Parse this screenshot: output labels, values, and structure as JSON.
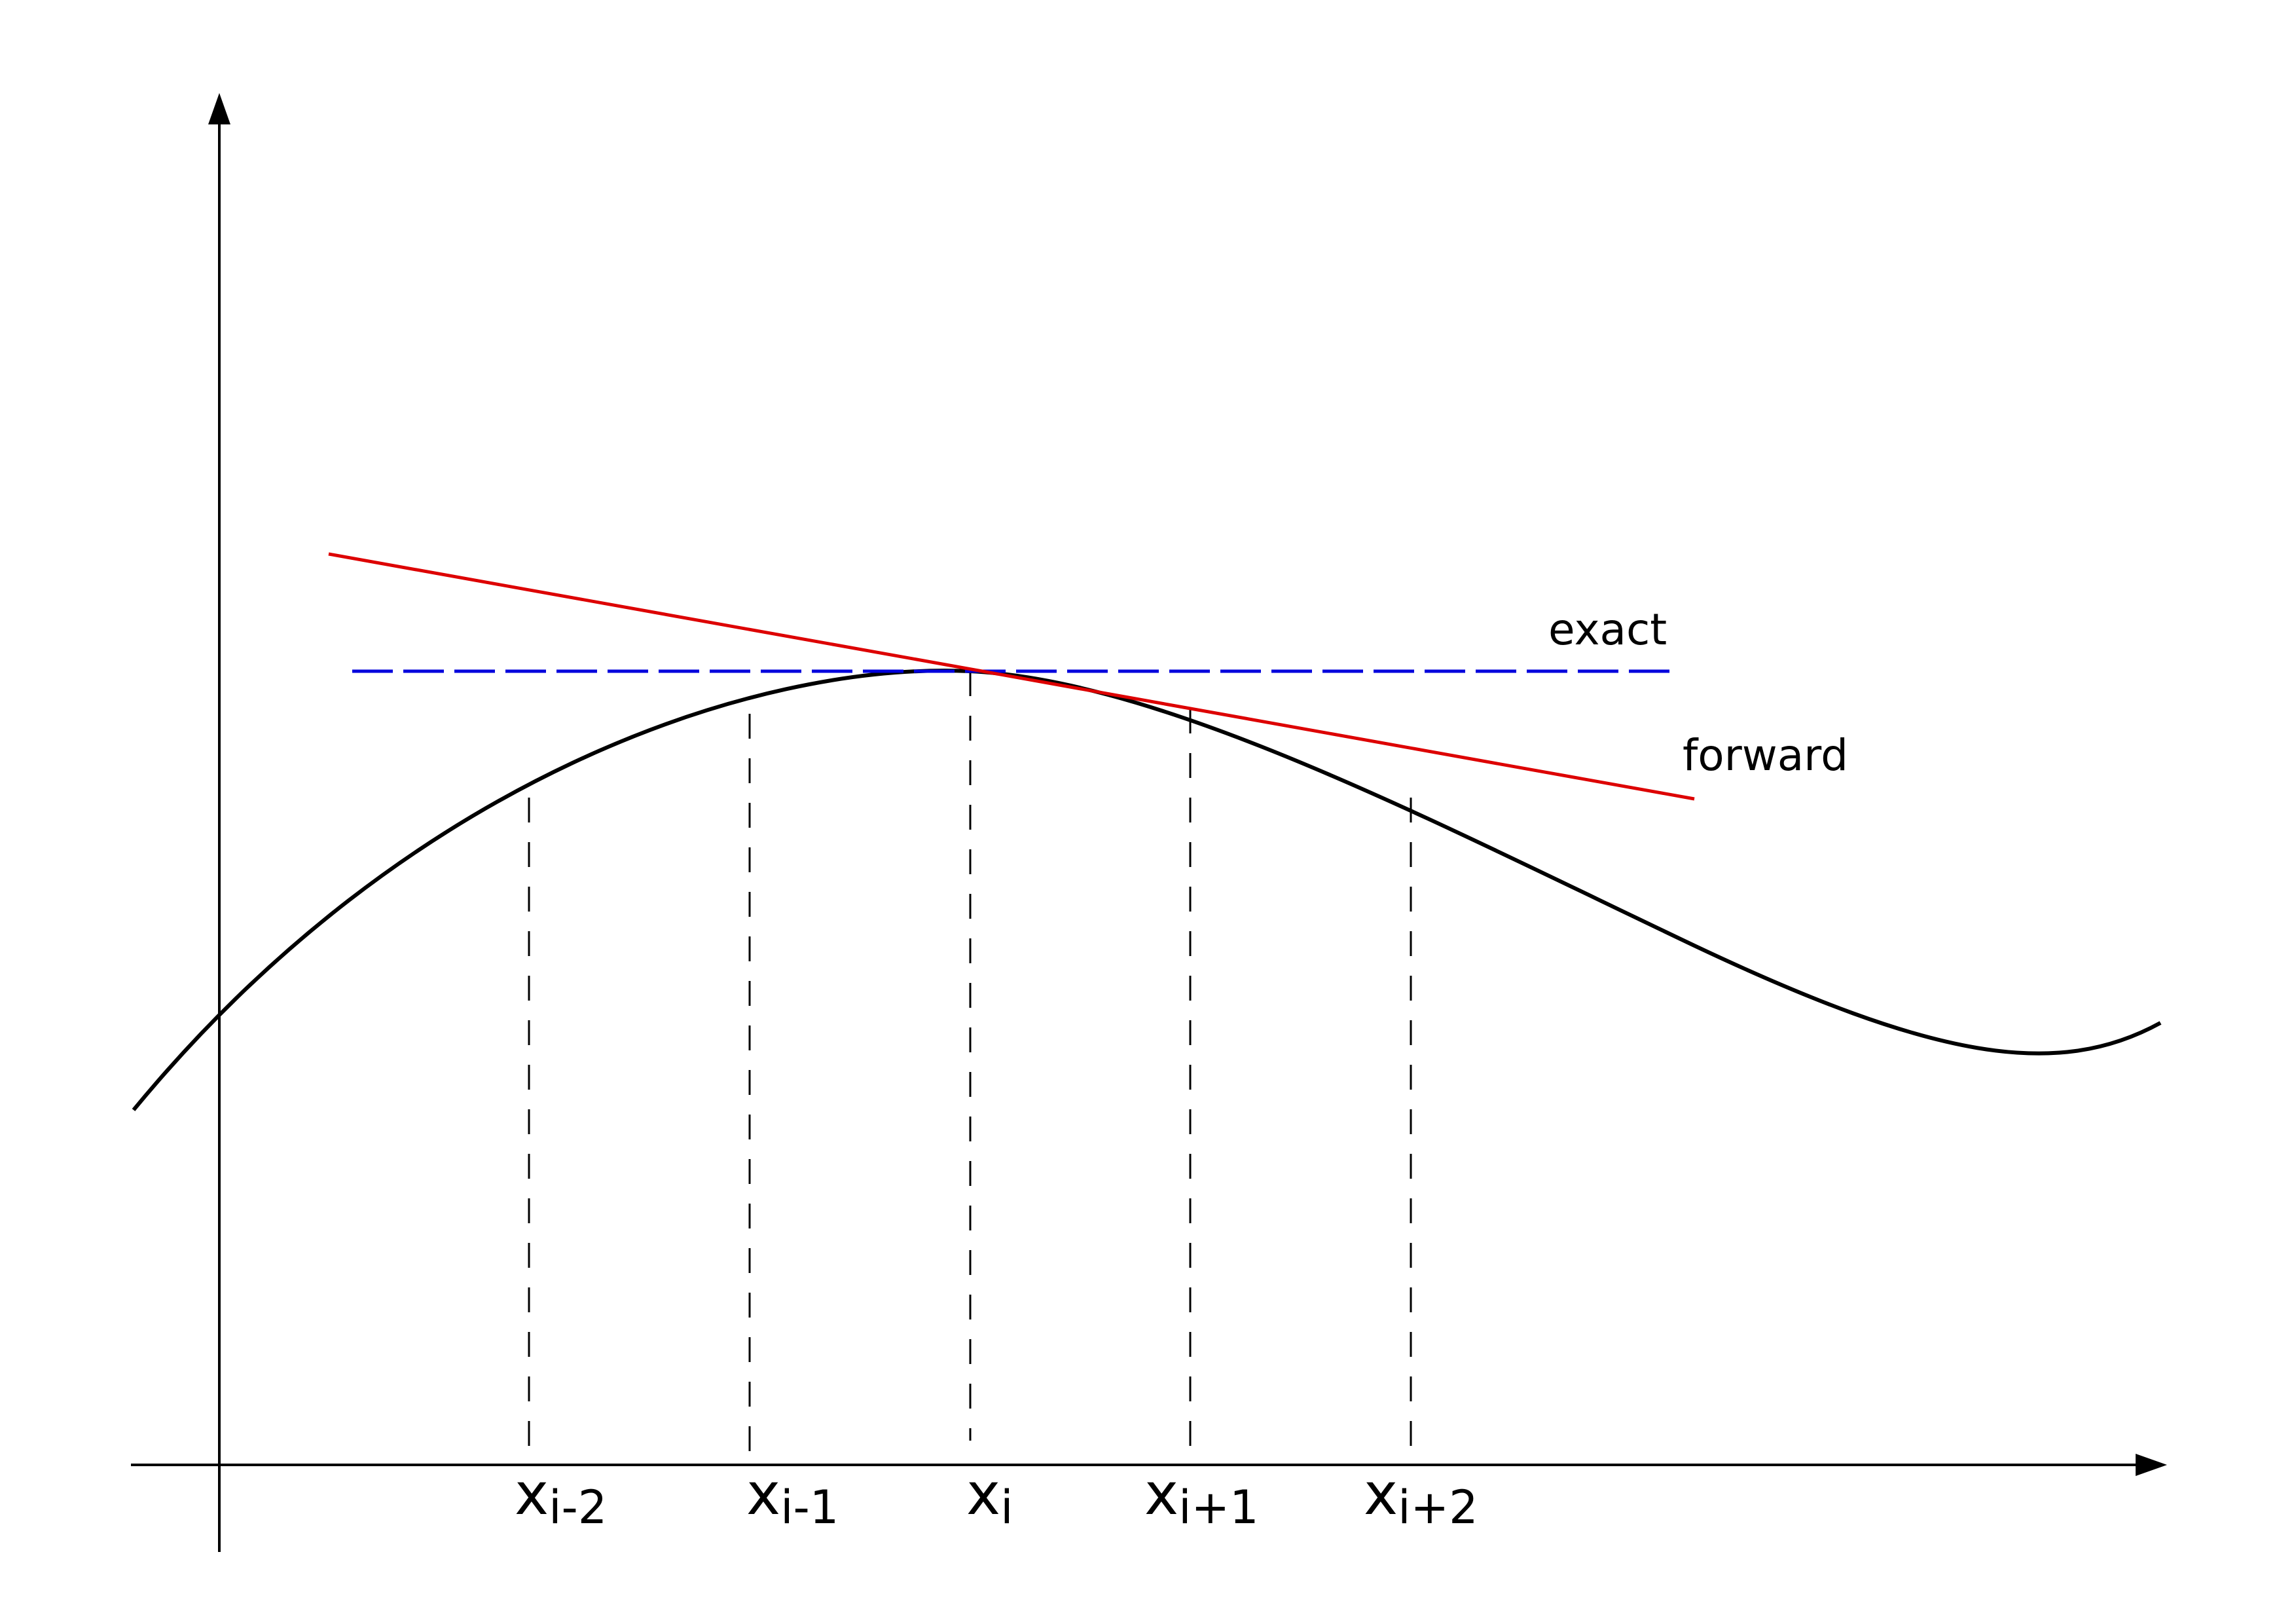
{
  "colors": {
    "curve": "#000000",
    "exact": "#0000dd",
    "forward": "#dd0000"
  },
  "labels": {
    "exact": "exact",
    "forward": "forward"
  },
  "ticks": [
    {
      "base": "x",
      "sub": "i-2"
    },
    {
      "base": "x",
      "sub": "i-1"
    },
    {
      "base": "x",
      "sub": "i"
    },
    {
      "base": "x",
      "sub": "i+1"
    },
    {
      "base": "x",
      "sub": "i+2"
    }
  ]
}
